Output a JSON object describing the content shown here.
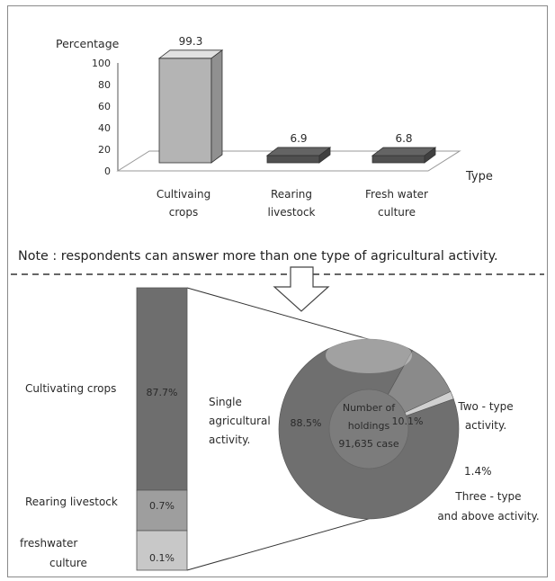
{
  "chart_data": [
    {
      "type": "bar",
      "ylabel": "Percentage",
      "xlabel": "Type",
      "ylim": [
        0,
        100
      ],
      "yticks": [
        "100",
        "80",
        "60",
        "40",
        "20",
        "0"
      ],
      "categories": [
        [
          "Cultivaing",
          "crops"
        ],
        [
          "Rearing",
          "livestock"
        ],
        [
          "Fresh water",
          "culture"
        ]
      ],
      "values": [
        99.3,
        6.9,
        6.8
      ],
      "value_labels": [
        "99.3",
        "6.9",
        "6.8"
      ],
      "colors": [
        "#b4b4b4",
        "#505050",
        "#505050"
      ]
    },
    {
      "type": "bar",
      "orientation": "stacked-vertical",
      "categories": [
        "Cultivating  crops",
        "Rearing  livestock",
        [
          "freshwater",
          "culture"
        ]
      ],
      "values": [
        87.7,
        0.7,
        0.1
      ],
      "value_labels": [
        "87.7%",
        "0.7%",
        "0.1%"
      ]
    },
    {
      "type": "pie",
      "center_label": [
        "Number of",
        "holdings",
        "91,635 case"
      ],
      "slices": [
        {
          "label": [
            "Single",
            "agricultural",
            "activity."
          ],
          "value": 88.5,
          "value_label": "88.5%"
        },
        {
          "label": [
            "Two - type",
            "activity."
          ],
          "value": 10.1,
          "value_label": "10.1%"
        },
        {
          "label": [
            "Three - type",
            "and above activity."
          ],
          "value": 1.4,
          "value_label": "1.4%"
        }
      ]
    }
  ],
  "note": "Note : respondents can answer  more than one type of agricultural activity."
}
